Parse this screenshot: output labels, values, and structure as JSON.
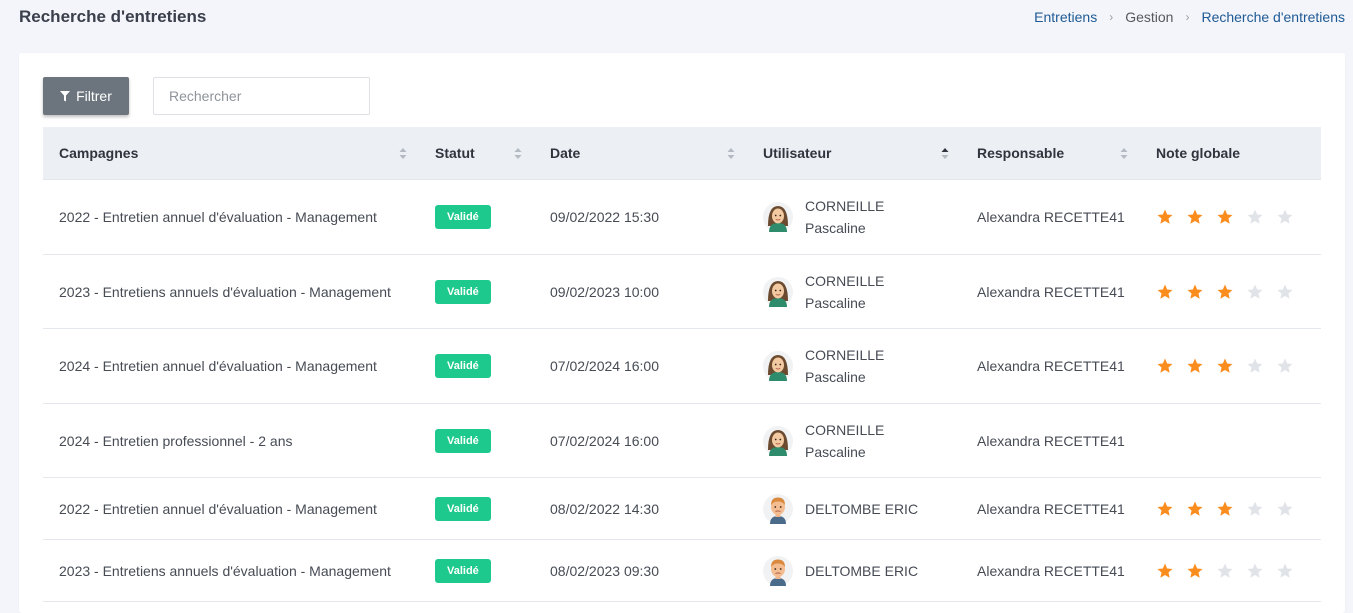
{
  "header": {
    "title": "Recherche d'entretiens",
    "breadcrumb": [
      "Entretiens",
      "Gestion",
      "Recherche d'entretiens"
    ]
  },
  "toolbar": {
    "filter_label": "Filtrer",
    "search_placeholder": "Rechercher"
  },
  "table": {
    "columns": [
      "Campagnes",
      "Statut",
      "Date",
      "Utilisateur",
      "Responsable",
      "Note globale"
    ],
    "rows": [
      {
        "campagne": "2022 - Entretien annuel d'évaluation - Management",
        "statut": "Validé",
        "date": "09/02/2022 15:30",
        "user_line1": "CORNEILLE",
        "user_line2": "Pascaline",
        "avatar": "woman-avatar",
        "responsable": "Alexandra RECETTE41",
        "rating": 3
      },
      {
        "campagne": "2023 - Entretiens annuels d'évaluation - Management",
        "statut": "Validé",
        "date": "09/02/2023 10:00",
        "user_line1": "CORNEILLE",
        "user_line2": "Pascaline",
        "avatar": "woman-avatar",
        "responsable": "Alexandra RECETTE41",
        "rating": 3
      },
      {
        "campagne": "2024 - Entretien annuel d'évaluation - Management",
        "statut": "Validé",
        "date": "07/02/2024 16:00",
        "user_line1": "CORNEILLE",
        "user_line2": "Pascaline",
        "avatar": "woman-avatar",
        "responsable": "Alexandra RECETTE41",
        "rating": 3
      },
      {
        "campagne": "2024 - Entretien professionnel - 2 ans",
        "statut": "Validé",
        "date": "07/02/2024 16:00",
        "user_line1": "CORNEILLE",
        "user_line2": "Pascaline",
        "avatar": "woman-avatar",
        "responsable": "Alexandra RECETTE41",
        "rating": null
      },
      {
        "campagne": "2022 - Entretien annuel d'évaluation - Management",
        "statut": "Validé",
        "date": "08/02/2022 14:30",
        "user_line1": "DELTOMBE ERIC",
        "user_line2": "",
        "avatar": "man-avatar",
        "responsable": "Alexandra RECETTE41",
        "rating": 3
      },
      {
        "campagne": "2023 - Entretiens annuels d'évaluation - Management",
        "statut": "Validé",
        "date": "08/02/2023 09:30",
        "user_line1": "DELTOMBE ERIC",
        "user_line2": "",
        "avatar": "man-avatar",
        "responsable": "Alexandra RECETTE41",
        "rating": 2
      }
    ]
  },
  "colors": {
    "badge": "#1ec98e",
    "star_on": "#fb8c1e",
    "star_off": "#e0e3e8",
    "link": "#1f5a95"
  }
}
